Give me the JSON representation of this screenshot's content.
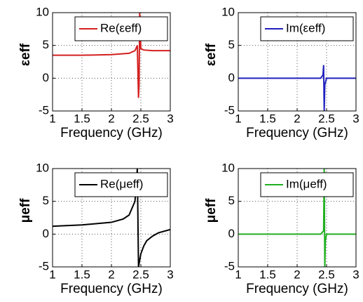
{
  "chart_data": [
    {
      "type": "line",
      "xlabel": "Frequency (GHz)",
      "ylabel": "εeff",
      "legend": "upper right",
      "grid": true,
      "xlim": [
        1,
        3
      ],
      "ylim": [
        -5,
        10
      ],
      "xticks": [
        1,
        1.5,
        2,
        2.5,
        3
      ],
      "yticks": [
        -5,
        0,
        5,
        10
      ],
      "x": [
        1,
        1.5,
        2,
        2.3,
        2.4,
        2.44,
        2.46,
        2.47,
        2.48,
        2.5,
        2.55,
        2.7,
        3
      ],
      "series": [
        {
          "name": "Re(εeff)",
          "color": "#d42020",
          "values": [
            3.5,
            3.5,
            3.6,
            3.8,
            4.2,
            5,
            -3,
            -1,
            10,
            4.5,
            4.3,
            4.2,
            4.2
          ]
        }
      ]
    },
    {
      "type": "line",
      "xlabel": "Frequency (GHz)",
      "ylabel": "εeff",
      "legend": "upper right",
      "grid": true,
      "xlim": [
        1,
        3
      ],
      "ylim": [
        -5,
        10
      ],
      "xticks": [
        1,
        1.5,
        2,
        2.5,
        3
      ],
      "yticks": [
        -5,
        0,
        5,
        10
      ],
      "x": [
        1,
        2.4,
        2.44,
        2.45,
        2.46,
        2.47,
        2.5,
        3
      ],
      "series": [
        {
          "name": "Im(εeff)",
          "color": "#2020c0",
          "values": [
            0,
            0,
            0.5,
            2,
            -5,
            -1,
            0,
            0
          ]
        }
      ]
    },
    {
      "type": "line",
      "xlabel": "Frequency (GHz)",
      "ylabel": "μeff",
      "legend": "upper right",
      "grid": true,
      "xlim": [
        1,
        3
      ],
      "ylim": [
        -5,
        10
      ],
      "xticks": [
        1,
        1.5,
        2,
        2.5,
        3
      ],
      "yticks": [
        -5,
        0,
        5,
        10
      ],
      "x": [
        1,
        1.5,
        2,
        2.2,
        2.3,
        2.4,
        2.44,
        2.46,
        2.5,
        2.55,
        2.6,
        2.7,
        2.8,
        3
      ],
      "series": [
        {
          "name": "Re(μeff)",
          "color": "#000000",
          "values": [
            1.2,
            1.4,
            1.8,
            2.3,
            2.9,
            5,
            10,
            -5,
            -3,
            -1.8,
            -1,
            -0.3,
            0.2,
            0.7
          ]
        }
      ]
    },
    {
      "type": "line",
      "xlabel": "Frequency (GHz)",
      "ylabel": "μeff",
      "legend": "upper right",
      "grid": true,
      "xlim": [
        1,
        3
      ],
      "ylim": [
        -5,
        10
      ],
      "xticks": [
        1,
        1.5,
        2,
        2.5,
        3
      ],
      "yticks": [
        -5,
        0,
        5,
        10
      ],
      "x": [
        1,
        2.4,
        2.45,
        2.46,
        2.47,
        2.48,
        2.5,
        3
      ],
      "series": [
        {
          "name": "Im(μeff)",
          "color": "#20b020",
          "values": [
            0,
            0,
            0.5,
            10,
            -5,
            -1,
            0,
            0
          ]
        }
      ]
    }
  ]
}
